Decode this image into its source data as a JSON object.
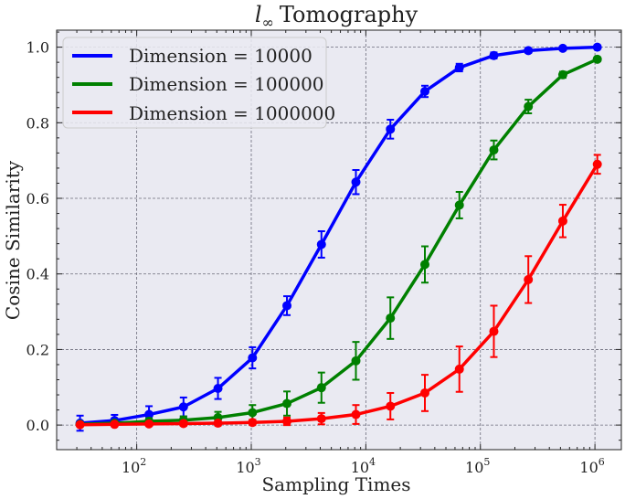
{
  "chart_data": {
    "type": "line",
    "title_symbol": "l",
    "title_subscript": "∞",
    "title_text": "Tomography",
    "xlabel": "Sampling Times",
    "ylabel": "Cosine Similarity",
    "xscale": "log",
    "xlim": [
      20,
      1700000
    ],
    "ylim": [
      -0.065,
      1.045
    ],
    "x_ticks": [
      {
        "value": 100,
        "base": "10",
        "exp": "2"
      },
      {
        "value": 1000,
        "base": "10",
        "exp": "3"
      },
      {
        "value": 10000,
        "base": "10",
        "exp": "4"
      },
      {
        "value": 100000,
        "base": "10",
        "exp": "5"
      },
      {
        "value": 1000000,
        "base": "10",
        "exp": "6"
      }
    ],
    "y_ticks": [
      {
        "value": 0.0,
        "label": "0.0"
      },
      {
        "value": 0.2,
        "label": "0.2"
      },
      {
        "value": 0.4,
        "label": "0.4"
      },
      {
        "value": 0.6,
        "label": "0.6"
      },
      {
        "value": 0.8,
        "label": "0.8"
      },
      {
        "value": 1.0,
        "label": "1.0"
      }
    ],
    "grid": true,
    "legend_position": "top-left",
    "x": [
      32,
      64,
      128,
      256,
      512,
      1024,
      2048,
      4096,
      8192,
      16384,
      32768,
      65536,
      131072,
      262144,
      524288,
      1048576
    ],
    "series": [
      {
        "name": "Dimension = 10000",
        "color": "#0000ff",
        "values": [
          0.005,
          0.012,
          0.028,
          0.048,
          0.097,
          0.178,
          0.316,
          0.478,
          0.643,
          0.783,
          0.883,
          0.946,
          0.978,
          0.991,
          0.997,
          1.0
        ],
        "errors": [
          0.02,
          0.015,
          0.022,
          0.025,
          0.028,
          0.028,
          0.025,
          0.035,
          0.032,
          0.025,
          0.015,
          0.01,
          0.008,
          0.006,
          0.004,
          0.003
        ]
      },
      {
        "name": "Dimension = 100000",
        "color": "#008000",
        "values": [
          0.002,
          0.005,
          0.01,
          0.013,
          0.02,
          0.033,
          0.057,
          0.099,
          0.17,
          0.283,
          0.425,
          0.582,
          0.728,
          0.843,
          0.927,
          0.968
        ],
        "errors": [
          0.005,
          0.006,
          0.008,
          0.01,
          0.015,
          0.02,
          0.032,
          0.04,
          0.05,
          0.055,
          0.048,
          0.035,
          0.025,
          0.018,
          0.008,
          0.005
        ]
      },
      {
        "name": "Dimension = 1000000",
        "color": "#ff0000",
        "values": [
          0.001,
          0.002,
          0.003,
          0.004,
          0.005,
          0.007,
          0.01,
          0.017,
          0.028,
          0.05,
          0.085,
          0.148,
          0.248,
          0.385,
          0.54,
          0.69
        ],
        "errors": [
          0.004,
          0.004,
          0.005,
          0.006,
          0.006,
          0.007,
          0.01,
          0.015,
          0.025,
          0.035,
          0.048,
          0.06,
          0.068,
          0.062,
          0.043,
          0.025
        ]
      }
    ]
  }
}
